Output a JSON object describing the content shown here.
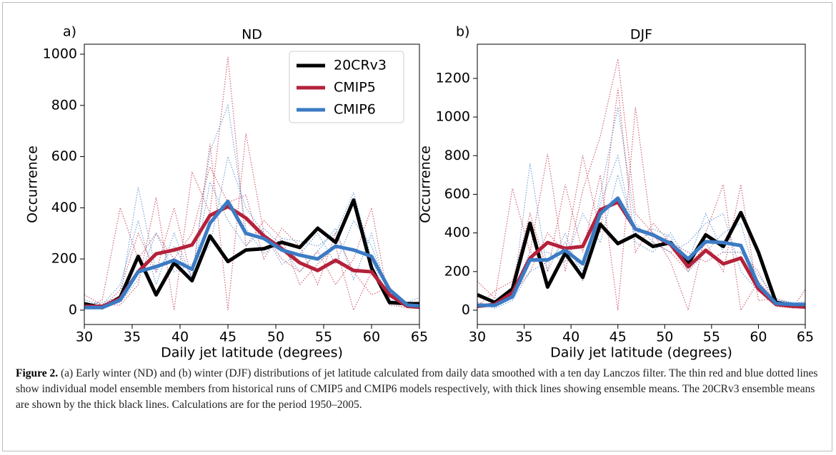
{
  "chart_data": [
    {
      "type": "line",
      "panel_label": "a)",
      "title": "ND",
      "xlabel": "Daily jet latitude (degrees)",
      "ylabel": "Occurrence",
      "x": [
        30,
        31.875,
        33.75,
        35.625,
        37.5,
        39.375,
        41.25,
        43.125,
        45,
        46.875,
        48.75,
        50.625,
        52.5,
        54.375,
        56.25,
        58.125,
        60,
        61.875,
        63.75,
        65.625
      ],
      "xlim": [
        30,
        65
      ],
      "xticks": [
        30,
        35,
        40,
        45,
        50,
        55,
        60,
        65
      ],
      "ylim": [
        -56,
        1039
      ],
      "yticks": [
        0,
        200,
        400,
        600,
        800,
        1000
      ],
      "legend": "upper right",
      "series": [
        {
          "name": "20CRv3",
          "color": "#000000",
          "values": [
            25,
            10,
            50,
            210,
            60,
            185,
            115,
            290,
            190,
            235,
            240,
            265,
            245,
            320,
            265,
            430,
            165,
            30,
            25,
            25
          ]
        },
        {
          "name": "CMIP5",
          "color": "#b5213a",
          "values": [
            15,
            15,
            45,
            150,
            220,
            235,
            255,
            370,
            405,
            360,
            290,
            240,
            185,
            155,
            195,
            155,
            150,
            60,
            15,
            10
          ]
        },
        {
          "name": "CMIP6",
          "color": "#3b7bc4",
          "values": [
            10,
            10,
            40,
            150,
            170,
            195,
            160,
            340,
            425,
            300,
            280,
            235,
            215,
            200,
            250,
            235,
            210,
            80,
            20,
            15
          ]
        }
      ],
      "ensemble_members": [
        {
          "color": "#c9485c",
          "values": [
            30,
            10,
            80,
            300,
            150,
            400,
            120,
            650,
            0,
            690,
            300,
            200,
            150,
            230,
            100,
            200,
            400,
            20,
            10,
            5
          ]
        },
        {
          "color": "#c9485c",
          "values": [
            60,
            20,
            20,
            100,
            440,
            0,
            540,
            380,
            990,
            250,
            350,
            280,
            100,
            180,
            250,
            0,
            150,
            50,
            30,
            20
          ]
        },
        {
          "color": "#c9485c",
          "values": [
            5,
            40,
            400,
            200,
            300,
            200,
            300,
            560,
            420,
            450,
            200,
            320,
            250,
            100,
            300,
            150,
            60,
            90,
            10,
            5
          ]
        },
        {
          "color": "#5a93d0",
          "values": [
            20,
            30,
            50,
            480,
            150,
            250,
            130,
            620,
            800,
            320,
            220,
            280,
            270,
            250,
            300,
            460,
            200,
            40,
            25,
            20
          ]
        },
        {
          "color": "#5a93d0",
          "values": [
            10,
            10,
            30,
            120,
            300,
            150,
            180,
            250,
            600,
            400,
            300,
            180,
            220,
            300,
            180,
            350,
            250,
            60,
            20,
            10
          ]
        },
        {
          "color": "#5a93d0",
          "values": [
            40,
            20,
            100,
            350,
            100,
            300,
            120,
            500,
            350,
            250,
            320,
            250,
            150,
            230,
            320,
            120,
            300,
            30,
            30,
            60
          ]
        }
      ]
    },
    {
      "type": "line",
      "panel_label": "b)",
      "title": "DJF",
      "xlabel": "Daily jet latitude (degrees)",
      "ylabel": "Occurrence",
      "x": [
        30,
        31.875,
        33.75,
        35.625,
        37.5,
        39.375,
        41.25,
        43.125,
        45,
        46.875,
        48.75,
        50.625,
        52.5,
        54.375,
        56.25,
        58.125,
        60,
        61.875,
        63.75,
        65.625
      ],
      "xlim": [
        30,
        65
      ],
      "xticks": [
        30,
        35,
        40,
        45,
        50,
        55,
        60,
        65
      ],
      "ylim": [
        -74,
        1377
      ],
      "yticks": [
        0,
        200,
        400,
        600,
        800,
        1000,
        1200
      ],
      "series": [
        {
          "name": "20CRv3",
          "color": "#000000",
          "values": [
            80,
            40,
            110,
            450,
            120,
            295,
            170,
            445,
            345,
            390,
            330,
            350,
            240,
            390,
            330,
            505,
            300,
            40,
            25,
            25
          ]
        },
        {
          "name": "CMIP5",
          "color": "#b5213a",
          "values": [
            20,
            30,
            90,
            270,
            350,
            320,
            330,
            520,
            560,
            420,
            390,
            340,
            225,
            310,
            240,
            270,
            110,
            30,
            20,
            15
          ]
        },
        {
          "name": "CMIP6",
          "color": "#3b7bc4",
          "values": [
            25,
            25,
            70,
            260,
            260,
            310,
            240,
            500,
            580,
            420,
            390,
            345,
            265,
            355,
            350,
            335,
            130,
            35,
            30,
            30
          ]
        }
      ],
      "ensemble_members": [
        {
          "color": "#c9485c",
          "values": [
            150,
            60,
            630,
            300,
            810,
            200,
            620,
            900,
            1300,
            500,
            400,
            250,
            0,
            400,
            650,
            0,
            150,
            40,
            20,
            150
          ]
        },
        {
          "color": "#c9485c",
          "values": [
            20,
            100,
            150,
            500,
            200,
            650,
            300,
            700,
            0,
            1050,
            350,
            300,
            200,
            350,
            200,
            650,
            50,
            60,
            30,
            20
          ]
        },
        {
          "color": "#c9485c",
          "values": [
            40,
            20,
            80,
            200,
            400,
            300,
            800,
            400,
            1150,
            300,
            450,
            350,
            300,
            250,
            300,
            300,
            200,
            20,
            10,
            40
          ]
        },
        {
          "color": "#5a93d0",
          "values": [
            30,
            30,
            60,
            760,
            200,
            400,
            150,
            600,
            1050,
            450,
            350,
            300,
            350,
            450,
            500,
            200,
            100,
            50,
            40,
            30
          ]
        },
        {
          "color": "#5a93d0",
          "values": [
            20,
            40,
            100,
            300,
            300,
            250,
            500,
            350,
            700,
            400,
            420,
            380,
            200,
            300,
            400,
            450,
            120,
            30,
            25,
            20
          ]
        },
        {
          "color": "#5a93d0",
          "values": [
            40,
            10,
            50,
            200,
            250,
            350,
            200,
            550,
            800,
            350,
            300,
            400,
            250,
            500,
            300,
            300,
            180,
            60,
            35,
            50
          ]
        }
      ]
    }
  ],
  "caption": {
    "label": "Figure 2.",
    "text": "(a) Early winter (ND) and (b) winter (DJF) distributions of jet latitude calculated from daily data smoothed with a ten day Lanczos filter. The thin red and blue dotted lines show individual model ensemble members from historical runs of CMIP5 and CMIP6 models respectively, with thick lines showing ensemble means. The 20CRv3 ensemble means are shown by the thick black lines. Calculations are for the period 1950–2005."
  }
}
